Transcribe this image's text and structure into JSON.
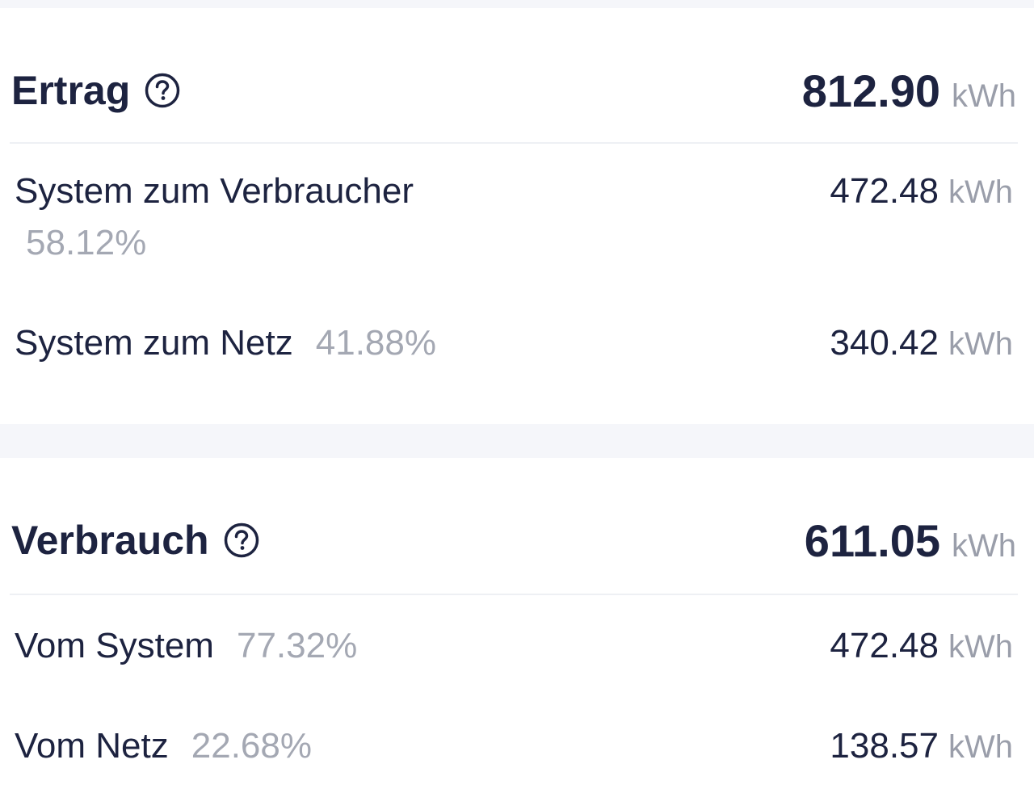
{
  "ertrag": {
    "title": "Ertrag",
    "total_value": "812.90",
    "unit": "kWh",
    "rows": [
      {
        "label": "System zum Verbraucher",
        "percent": "58.12%",
        "value": "472.48",
        "unit": "kWh"
      },
      {
        "label": "System zum Netz",
        "percent": "41.88%",
        "value": "340.42",
        "unit": "kWh"
      }
    ]
  },
  "verbrauch": {
    "title": "Verbrauch",
    "total_value": "611.05",
    "unit": "kWh",
    "rows": [
      {
        "label": "Vom System",
        "percent": "77.32%",
        "value": "472.48",
        "unit": "kWh"
      },
      {
        "label": "Vom Netz",
        "percent": "22.68%",
        "value": "138.57",
        "unit": "kWh"
      }
    ]
  },
  "colors": {
    "text_primary": "#1d2340",
    "text_secondary": "#9a9eaa",
    "background": "#f5f6fa",
    "card": "#ffffff"
  },
  "icons": {
    "help": "question-circle-icon"
  }
}
